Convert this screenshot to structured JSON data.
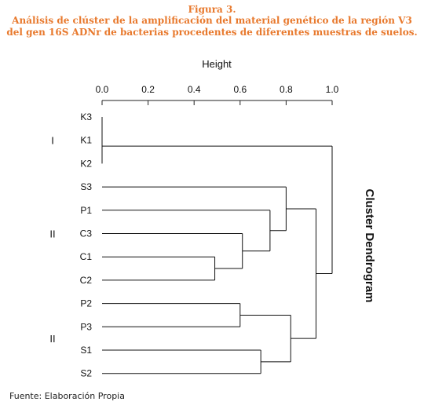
{
  "figure": {
    "number_label": "Figura 3.",
    "caption_line1": "Análisis de clúster de la amplificación del material genético de la región V3",
    "caption_line2": "del gen 16S ADNr de bacterias procedentes de diferentes muestras de suelos.",
    "source": "Fuente: Elaboración Propia"
  },
  "chart_data": {
    "type": "dendrogram",
    "axis_title": "Height",
    "side_title": "Cluster Dendrogram",
    "xlim": [
      0,
      1.0
    ],
    "ticks": [
      0.0,
      0.2,
      0.4,
      0.6,
      0.8,
      1.0
    ],
    "tick_labels": [
      "0.0",
      "0.2",
      "0.4",
      "0.6",
      "0.8",
      "1.0"
    ],
    "leaves": [
      "K3",
      "K1",
      "K2",
      "S3",
      "P1",
      "C3",
      "C1",
      "C2",
      "P2",
      "P3",
      "S1",
      "S2"
    ],
    "groups": [
      {
        "label": "I",
        "leaves": [
          "K3",
          "K1",
          "K2"
        ]
      },
      {
        "label": "II",
        "leaves": [
          "S3",
          "P1",
          "C3",
          "C1",
          "C2"
        ]
      },
      {
        "label": "II",
        "leaves": [
          "P2",
          "P3",
          "S1",
          "S2"
        ]
      }
    ],
    "merges": [
      {
        "left": "K3",
        "right": "K1",
        "height": 0.0
      },
      {
        "left": "m1",
        "right": "K2",
        "height": 0.0
      },
      {
        "left": "C1",
        "right": "C2",
        "height": 0.49
      },
      {
        "left": "C3",
        "right": "m3",
        "height": 0.61
      },
      {
        "left": "P1",
        "right": "m4",
        "height": 0.73
      },
      {
        "left": "S3",
        "right": "m5",
        "height": 0.8
      },
      {
        "left": "P2",
        "right": "P3",
        "height": 0.6
      },
      {
        "left": "S1",
        "right": "S2",
        "height": 0.69
      },
      {
        "left": "m7",
        "right": "m8",
        "height": 0.82
      },
      {
        "left": "m6",
        "right": "m9",
        "height": 0.93
      },
      {
        "left": "m2",
        "right": "m10",
        "height": 1.0
      }
    ]
  }
}
